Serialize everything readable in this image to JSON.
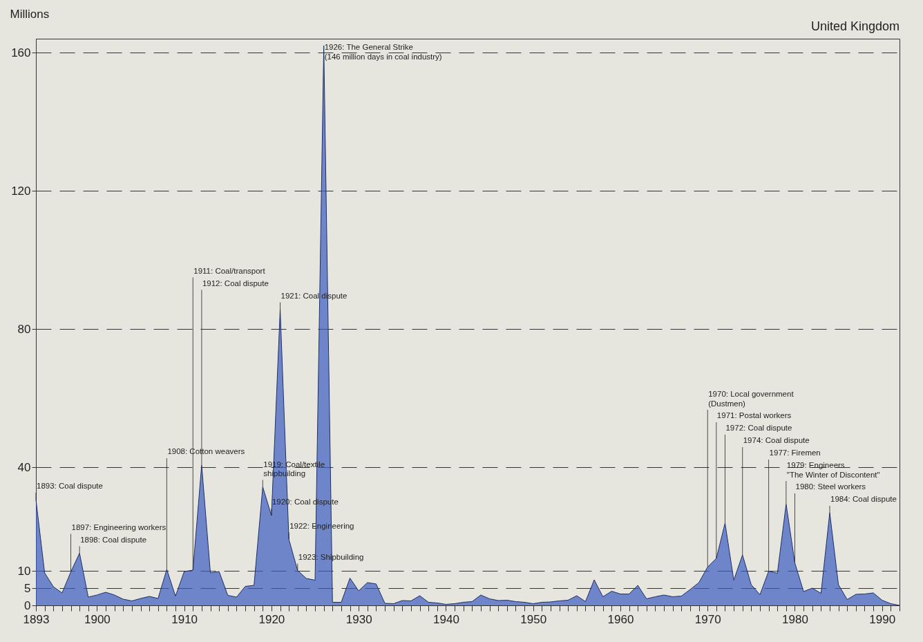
{
  "chart_data": {
    "type": "area",
    "title": "United Kingdom",
    "ylabel": "Millions",
    "x": [
      1893,
      1894,
      1895,
      1896,
      1897,
      1898,
      1899,
      1900,
      1901,
      1902,
      1903,
      1904,
      1905,
      1906,
      1907,
      1908,
      1909,
      1910,
      1911,
      1912,
      1913,
      1914,
      1915,
      1916,
      1917,
      1918,
      1919,
      1920,
      1921,
      1922,
      1923,
      1924,
      1925,
      1926,
      1927,
      1928,
      1929,
      1930,
      1931,
      1932,
      1933,
      1934,
      1935,
      1936,
      1937,
      1938,
      1939,
      1940,
      1941,
      1942,
      1943,
      1944,
      1945,
      1946,
      1947,
      1948,
      1949,
      1950,
      1951,
      1952,
      1953,
      1954,
      1955,
      1956,
      1957,
      1958,
      1959,
      1960,
      1961,
      1962,
      1963,
      1964,
      1965,
      1966,
      1967,
      1968,
      1969,
      1970,
      1971,
      1972,
      1973,
      1974,
      1975,
      1976,
      1977,
      1978,
      1979,
      1980,
      1981,
      1982,
      1983,
      1984,
      1985,
      1986,
      1987,
      1988,
      1989,
      1990,
      1991,
      1992
    ],
    "series": [
      {
        "color": "#3b5cc0",
        "values": [
          30.6,
          9.4,
          5.4,
          3.6,
          9.7,
          15.1,
          2.4,
          3.0,
          3.8,
          3.0,
          1.8,
          1.3,
          2.0,
          2.6,
          2.0,
          10.4,
          2.7,
          9.8,
          10.2,
          40.6,
          9.4,
          9.8,
          2.9,
          2.4,
          5.5,
          5.8,
          34.3,
          26.0,
          85.7,
          19.1,
          10.1,
          7.8,
          7.3,
          162,
          0.9,
          0.9,
          7.9,
          4.2,
          6.6,
          6.2,
          0.6,
          0.5,
          1.4,
          1.3,
          2.8,
          0.9,
          0.7,
          0.3,
          0.5,
          0.9,
          1.1,
          3.0,
          1.9,
          1.4,
          1.5,
          1.1,
          0.9,
          0.5,
          0.9,
          1.0,
          1.3,
          1.5,
          2.8,
          1.1,
          7.4,
          2.5,
          4.1,
          3.3,
          3.3,
          5.8,
          1.9,
          2.5,
          3.0,
          2.5,
          2.7,
          4.6,
          6.6,
          11.1,
          13.6,
          23.8,
          7.3,
          14.6,
          6.0,
          3.1,
          9.9,
          9.3,
          29.3,
          12.3,
          4.0,
          5.0,
          3.5,
          26.8,
          6.0,
          1.7,
          3.2,
          3.3,
          3.6,
          1.5,
          0.5,
          0
        ]
      }
    ],
    "xlim": [
      1893,
      1992
    ],
    "xticks": [
      1893,
      {
        "value": 1894,
        "label": null
      },
      {
        "value": 1895,
        "label": null
      },
      {
        "value": 1896,
        "label": null
      },
      {
        "value": 1897,
        "label": null
      },
      {
        "value": 1898,
        "label": null
      },
      {
        "value": 1899,
        "label": null
      },
      1900,
      {
        "value": 1901,
        "label": null
      },
      {
        "value": 1902,
        "label": null
      },
      {
        "value": 1903,
        "label": null
      },
      {
        "value": 1904,
        "label": null
      },
      {
        "value": 1905,
        "label": null
      },
      {
        "value": 1906,
        "label": null
      },
      {
        "value": 1907,
        "label": null
      },
      {
        "value": 1908,
        "label": null
      },
      {
        "value": 1909,
        "label": null
      },
      1910,
      {
        "value": 1911,
        "label": null
      },
      {
        "value": 1912,
        "label": null
      },
      {
        "value": 1913,
        "label": null
      },
      {
        "value": 1914,
        "label": null
      },
      {
        "value": 1915,
        "label": null
      },
      {
        "value": 1916,
        "label": null
      },
      {
        "value": 1917,
        "label": null
      },
      {
        "value": 1918,
        "label": null
      },
      {
        "value": 1919,
        "label": null
      },
      1920,
      {
        "value": 1921,
        "label": null
      },
      {
        "value": 1922,
        "label": null
      },
      {
        "value": 1923,
        "label": null
      },
      {
        "value": 1924,
        "label": null
      },
      {
        "value": 1925,
        "label": null
      },
      {
        "value": 1926,
        "label": null
      },
      {
        "value": 1927,
        "label": null
      },
      {
        "value": 1928,
        "label": null
      },
      {
        "value": 1929,
        "label": null
      },
      1930,
      {
        "value": 1931,
        "label": null
      },
      {
        "value": 1932,
        "label": null
      },
      {
        "value": 1933,
        "label": null
      },
      {
        "value": 1934,
        "label": null
      },
      {
        "value": 1935,
        "label": null
      },
      {
        "value": 1936,
        "label": null
      },
      {
        "value": 1937,
        "label": null
      },
      {
        "value": 1938,
        "label": null
      },
      {
        "value": 1939,
        "label": null
      },
      1940,
      {
        "value": 1941,
        "label": null
      },
      {
        "value": 1942,
        "label": null
      },
      {
        "value": 1943,
        "label": null
      },
      {
        "value": 1944,
        "label": null
      },
      {
        "value": 1945,
        "label": null
      },
      {
        "value": 1946,
        "label": null
      },
      {
        "value": 1947,
        "label": null
      },
      {
        "value": 1948,
        "label": null
      },
      {
        "value": 1949,
        "label": null
      },
      1950,
      {
        "value": 1951,
        "label": null
      },
      {
        "value": 1952,
        "label": null
      },
      {
        "value": 1953,
        "label": null
      },
      {
        "value": 1954,
        "label": null
      },
      {
        "value": 1955,
        "label": null
      },
      {
        "value": 1956,
        "label": null
      },
      {
        "value": 1957,
        "label": null
      },
      {
        "value": 1958,
        "label": null
      },
      {
        "value": 1959,
        "label": null
      },
      1960,
      {
        "value": 1961,
        "label": null
      },
      {
        "value": 1962,
        "label": null
      },
      {
        "value": 1963,
        "label": null
      },
      {
        "value": 1964,
        "label": null
      },
      {
        "value": 1965,
        "label": null
      },
      {
        "value": 1966,
        "label": null
      },
      {
        "value": 1967,
        "label": null
      },
      {
        "value": 1968,
        "label": null
      },
      {
        "value": 1969,
        "label": null
      },
      1970,
      {
        "value": 1971,
        "label": null
      },
      {
        "value": 1972,
        "label": null
      },
      {
        "value": 1973,
        "label": null
      },
      {
        "value": 1974,
        "label": null
      },
      {
        "value": 1975,
        "label": null
      },
      {
        "value": 1976,
        "label": null
      },
      {
        "value": 1977,
        "label": null
      },
      {
        "value": 1978,
        "label": null
      },
      {
        "value": 1979,
        "label": null
      },
      1980,
      {
        "value": 1981,
        "label": null
      },
      {
        "value": 1982,
        "label": null
      },
      {
        "value": 1983,
        "label": null
      },
      {
        "value": 1984,
        "label": null
      },
      {
        "value": 1985,
        "label": null
      },
      {
        "value": 1986,
        "label": null
      },
      {
        "value": 1987,
        "label": null
      },
      {
        "value": 1988,
        "label": null
      },
      {
        "value": 1989,
        "label": null
      },
      1990,
      {
        "value": 1991,
        "label": null
      },
      {
        "value": 1992,
        "label": null
      }
    ],
    "ylim": [
      0,
      164
    ],
    "yticks": [
      0,
      5,
      10,
      40,
      80,
      120,
      160
    ],
    "grid": "y",
    "marker": "none",
    "annotations": [
      {
        "text": "1893: Coal dispute",
        "x": 1893,
        "y": 30.6
      },
      {
        "text": "1897: Engineering workers",
        "x": 1897,
        "y": 9.7
      },
      {
        "text": "1898: Coal dispute",
        "x": 1898,
        "y": 15.1
      },
      {
        "text": "1908: Cotton weavers",
        "x": 1908,
        "y": 10.4
      },
      {
        "text": "1911: Coal/transport",
        "x": 1911,
        "y": 10.2
      },
      {
        "text": "1912: Coal dispute",
        "x": 1912,
        "y": 40.6
      },
      {
        "text": "1919: Coal/textile\n   shipbuilding",
        "x": 1919,
        "y": 34.3
      },
      {
        "text": "1920: Coal dispute",
        "x": 1920,
        "y": 26.0
      },
      {
        "text": "1921: Coal dispute",
        "x": 1921,
        "y": 85.7
      },
      {
        "text": "1922: Engineering",
        "x": 1922,
        "y": 19.1
      },
      {
        "text": "1923: Shipbuilding",
        "x": 1923,
        "y": 10.1
      },
      {
        "text": "1926: The General Strike\n   (146 million days in coal industry)",
        "x": 1926,
        "y": 162
      },
      {
        "text": "1970: Local government\n      (Dustmen)",
        "x": 1970,
        "y": 11.1
      },
      {
        "text": "1971: Postal workers",
        "x": 1971,
        "y": 13.6
      },
      {
        "text": "1972: Coal dispute",
        "x": 1972,
        "y": 23.8
      },
      {
        "text": "1974: Coal dispute",
        "x": 1974,
        "y": 14.6
      },
      {
        "text": "1977: Firemen",
        "x": 1977,
        "y": 9.9
      },
      {
        "text": "1979: Engineers\n   \"The Winter of Discontent\"",
        "x": 1979,
        "y": 29.3
      },
      {
        "text": "1980: Steel workers",
        "x": 1980,
        "y": 12.3
      },
      {
        "text": "1984: Coal dispute",
        "x": 1984,
        "y": 26.8
      }
    ]
  }
}
